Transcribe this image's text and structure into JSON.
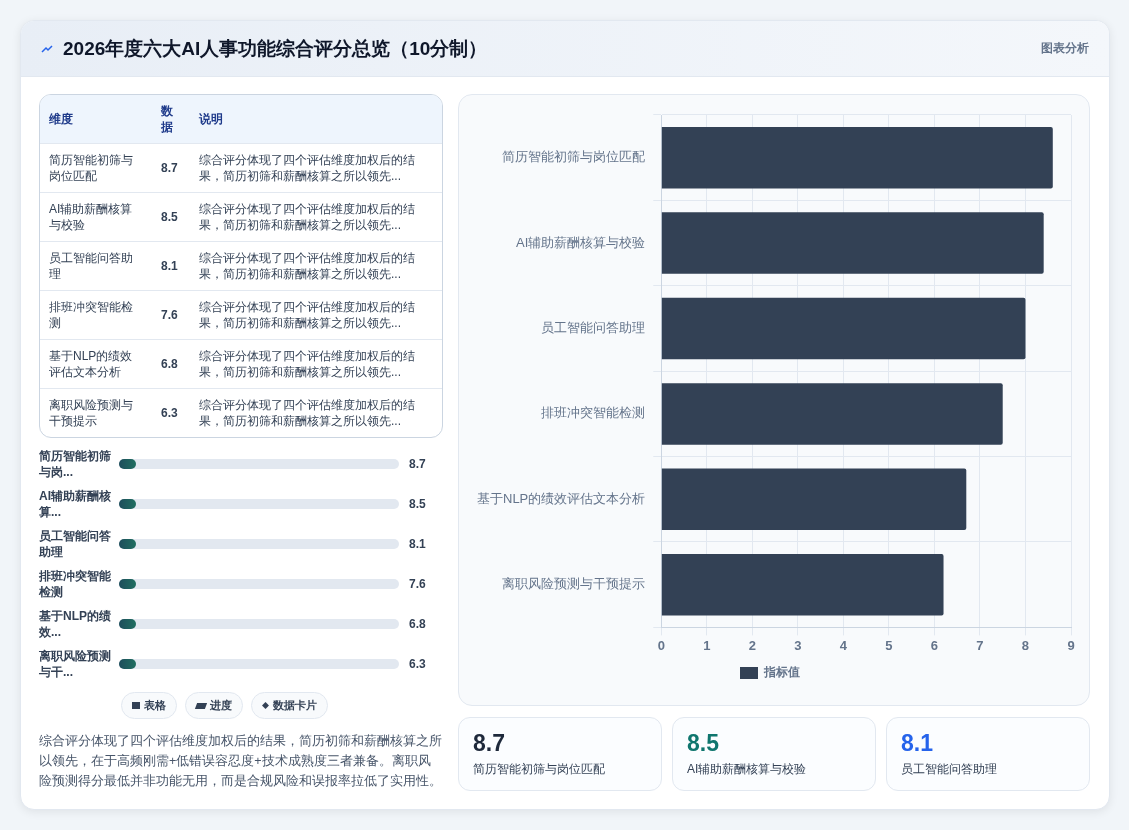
{
  "chart_data": [
    {
      "type": "other",
      "title": "2026年度六大AI人事功能综合评分总览（10分制）",
      "subtitle": "图表分析",
      "categories": [
        "简历智能初筛与岗位匹配",
        "AI辅助薪酬核算与校验",
        "员工智能问答助理",
        "排班冲突智能检测",
        "基于NLP的绩效评估文本分析",
        "离职风险预测与干预提示"
      ],
      "values": [
        8.7,
        8.5,
        8.1,
        7.6,
        6.8,
        6.3
      ],
      "data_labels": true,
      "annotations": [
        "维度",
        "数据",
        "说明",
        "综合评分体现了四个评估维度加权后的结果，简历初筛和薪酬核算之所以领先...",
        "综合评分体现了四个评估维度加权后的结果，简历初筛和薪酬核算之所以领先...",
        "综合评分体现了四个评估维度加权后的结果，简历初筛和薪酬核算之所以领先...",
        "综合评分体现了四个评估维度加权后的结果，简历初筛和薪酬核算之所以领先...",
        "综合评分体现了四个评估维度加权后的结果，简历初筛和薪酬核算之所以领先...",
        "综合评分体现了四个评估维度加权后的结果，简历初筛和薪酬核算之所以领先..."
      ]
    },
    {
      "type": "other",
      "categories": [
        "简历智能初筛与岗...",
        "AI辅助薪酬核算...",
        "员工智能问答助理",
        "排班冲突智能检测",
        "基于NLP的绩效...",
        "离职风险预测与干..."
      ],
      "values": [
        8.7,
        8.5,
        8.1,
        7.6,
        6.8,
        6.3
      ],
      "data_labels": true,
      "annotations": [
        "表格",
        "进度",
        "数据卡片",
        "综合评分体现了四个评估维度加权后的结果，简历初筛和薪酬核算之所以领先，在于高频刚需+低错误容忍度+技术成熟度三者兼备。离职风险预测得分最低并非功能无用，而是合规风险和误报率拉低了实用性。"
      ]
    },
    {
      "type": "bar",
      "orientation": "horizontal",
      "categories": [
        "简历智能初筛与岗位匹配",
        "AI辅助薪酬核算与校验",
        "员工智能问答助理",
        "排班冲突智能检测",
        "基于NLP的绩效评估文本分析",
        "离职风险预测与干预提示"
      ],
      "series": [
        {
          "name": "指标值",
          "color": "#334155",
          "values": [
            8.6,
            8.4,
            8.0,
            7.5,
            6.7,
            6.2
          ]
        }
      ],
      "xlim": [
        0,
        9
      ],
      "xticks": [
        0,
        1,
        2,
        3,
        4,
        5,
        6,
        7,
        8,
        9
      ],
      "grid": true,
      "legend": "bottom"
    },
    {
      "type": "other",
      "categories": [
        "简历智能初筛与岗位匹配",
        "AI辅助薪酬核算与校验",
        "员工智能问答助理"
      ],
      "values": [
        8.7,
        8.5,
        8.1
      ],
      "data_labels": true
    }
  ]
}
